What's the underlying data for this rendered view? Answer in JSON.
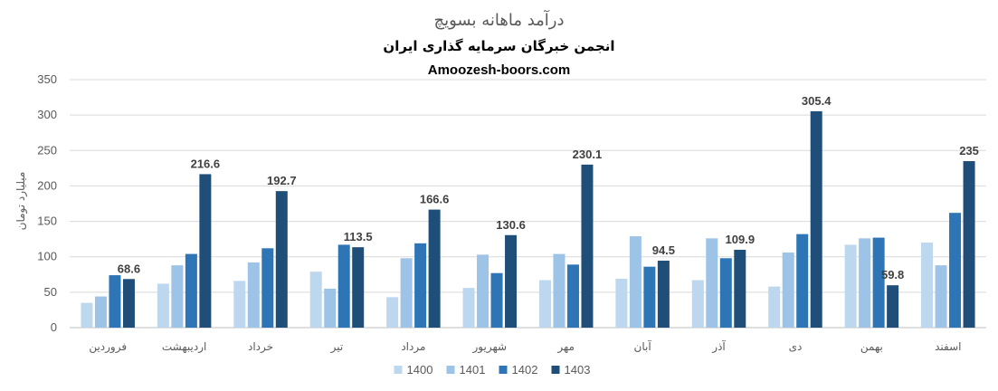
{
  "chart_data": {
    "type": "bar",
    "title": "درآمد ماهانه بسویچ",
    "subtitle": "انجمن خبرگان سرمایه گذاری ایران",
    "source": "Amoozesh-boors.com",
    "ylabel": "میلیارد تومان",
    "xlabel": "",
    "ylim": [
      0,
      350
    ],
    "yticks": [
      0,
      50,
      100,
      150,
      200,
      250,
      300,
      350
    ],
    "grid": true,
    "legend_position": "bottom",
    "categories": [
      "فروردین",
      "اردیبهشت",
      "خرداد",
      "تیر",
      "مرداد",
      "شهریور",
      "مهر",
      "آبان",
      "آذر",
      "دی",
      "بهمن",
      "اسفند"
    ],
    "series": [
      {
        "name": "1400",
        "color": "#bdd7ee",
        "values": [
          35,
          62,
          66,
          79,
          43,
          56,
          67,
          69,
          67,
          58,
          117,
          120
        ]
      },
      {
        "name": "1401",
        "color": "#9dc3e6",
        "values": [
          44,
          88,
          92,
          55,
          98,
          103,
          104,
          129,
          126,
          106,
          126,
          88
        ]
      },
      {
        "name": "1402",
        "color": "#2e75b6",
        "values": [
          74,
          104,
          112,
          117,
          119,
          77,
          89,
          86,
          98,
          132,
          127,
          162
        ]
      },
      {
        "name": "1403",
        "color": "#1f4e79",
        "values": [
          68.6,
          216.6,
          192.7,
          113.5,
          166.6,
          130.6,
          230.1,
          94.5,
          109.9,
          305.4,
          59.8,
          235
        ],
        "data_labels": [
          "68.6",
          "216.6",
          "192.7",
          "113.5",
          "166.6",
          "130.6",
          "230.1",
          "94.5",
          "109.9",
          "305.4",
          "59.8",
          "235"
        ]
      }
    ]
  }
}
